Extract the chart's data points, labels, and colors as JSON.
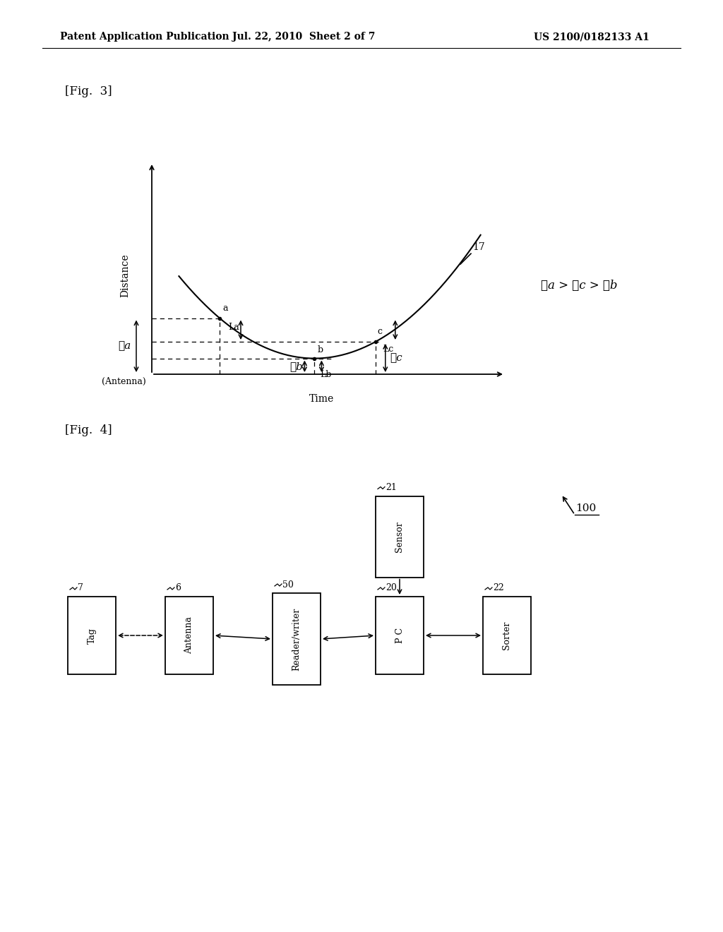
{
  "header_left": "Patent Application Publication",
  "header_mid": "Jul. 22, 2010  Sheet 2 of 7",
  "header_right": "US 2100/0182133 A1",
  "fig3_label": "[Fig.  3]",
  "fig4_label": "[Fig.  4]",
  "bg_color": "#ffffff",
  "text_color": "#000000",
  "fig3": {
    "ylabel": "Distance",
    "xlabel": "Time",
    "antenna_label": "(Antenna)",
    "curve_label": "17",
    "eq_label": "ℓa > ℓc > ℓb"
  },
  "fig4": {
    "ref_label": "100"
  }
}
